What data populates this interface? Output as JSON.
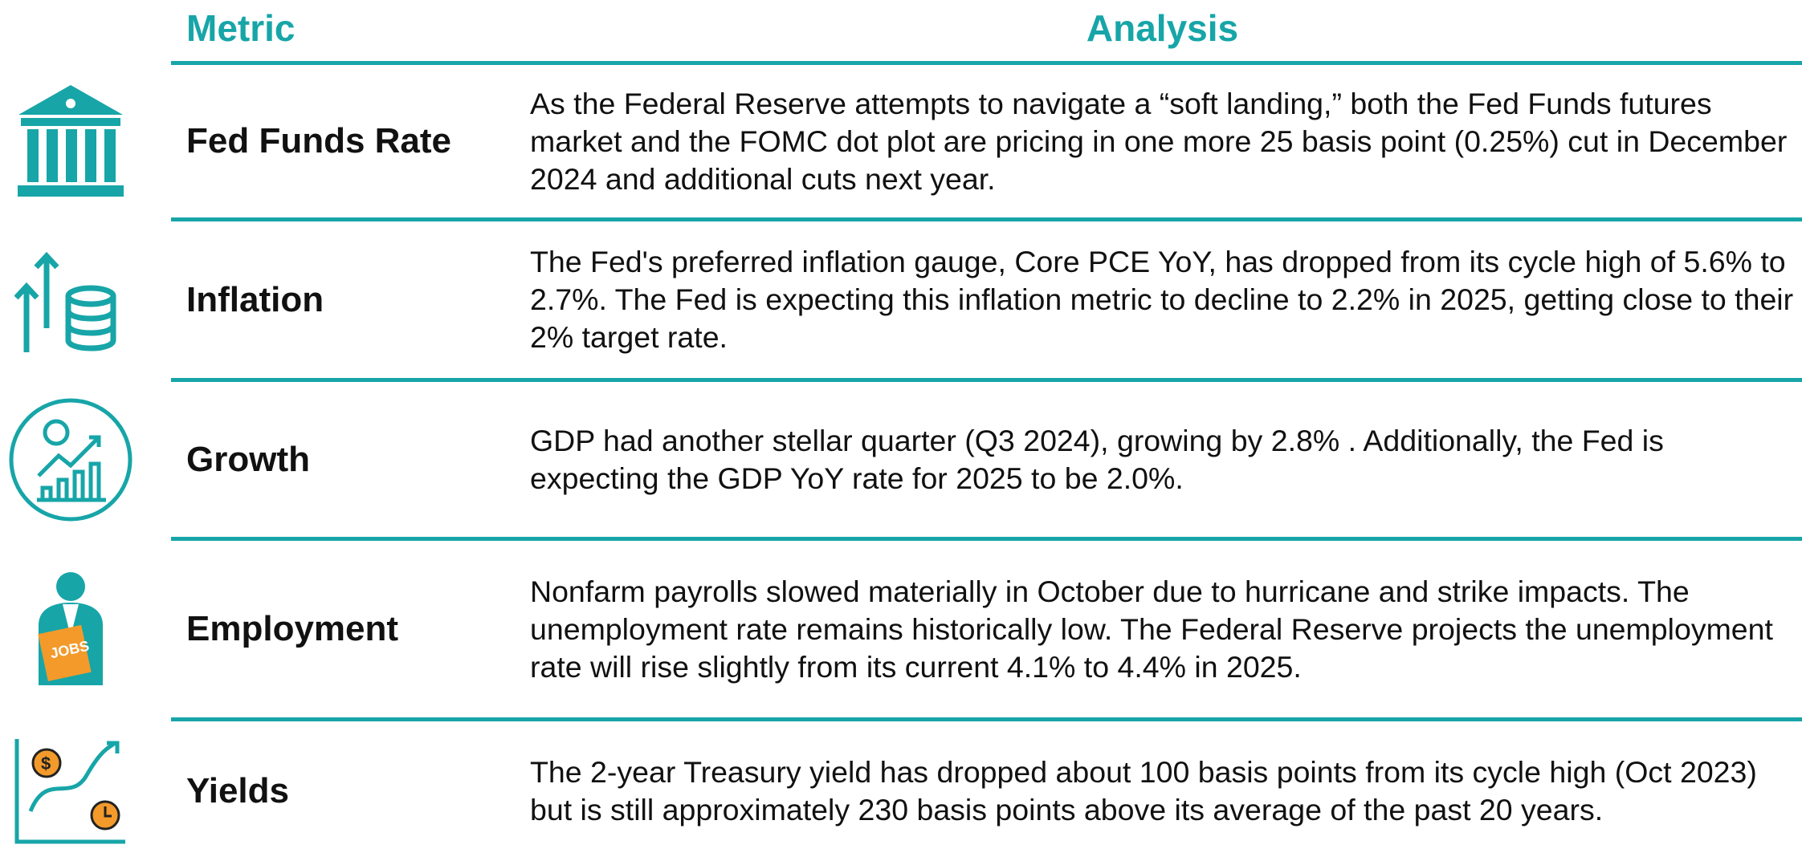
{
  "header": {
    "metric": "Metric",
    "analysis": "Analysis"
  },
  "rows": [
    {
      "metric": "Fed Funds Rate",
      "analysis": "As the Federal Reserve attempts to navigate a “soft landing,” both the Fed Funds futures market and the FOMC dot plot are pricing in one more 25 basis point (0.25%) cut in December 2024 and additional cuts next year."
    },
    {
      "metric": "Inflation",
      "analysis": "The Fed's preferred inflation gauge, Core PCE YoY, has dropped from its cycle high of 5.6% to 2.7%. The Fed is expecting this inflation metric to decline to 2.2% in 2025, getting close to their 2% target rate."
    },
    {
      "metric": "Growth",
      "analysis": "GDP had another stellar quarter (Q3 2024), growing by 2.8% . Additionally, the Fed is expecting the GDP YoY rate for 2025 to be 2.0%."
    },
    {
      "metric": "Employment",
      "analysis": "Nonfarm payrolls slowed materially in October due to hurricane and strike impacts. The unemployment rate remains historically low. The Federal Reserve projects the unemployment rate will rise slightly from its current 4.1% to 4.4% in 2025."
    },
    {
      "metric": "Yields",
      "analysis": "The 2-year Treasury yield has dropped about 100 basis points from its cycle high (Oct 2023) but is still approximately 230 basis points above its average of the past 20 years."
    }
  ]
}
